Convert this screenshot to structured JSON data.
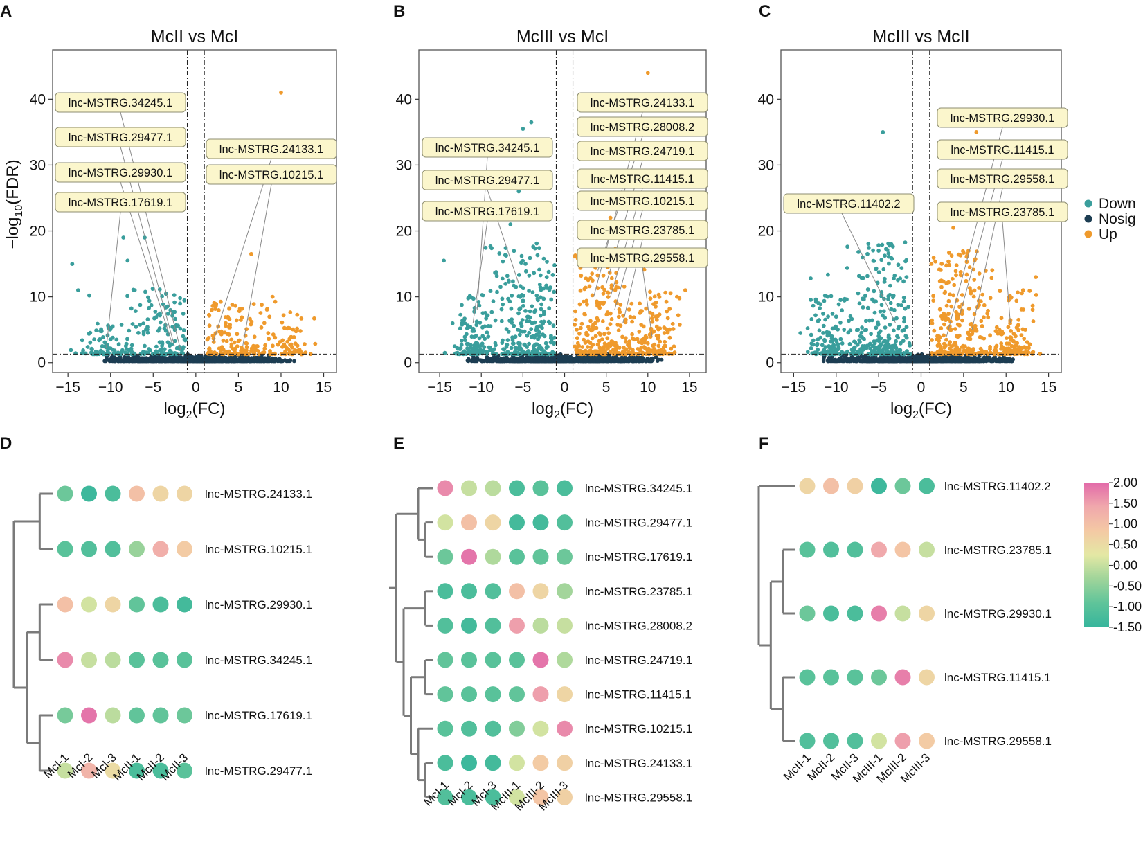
{
  "colors": {
    "down": "#3a9e9c",
    "nosig": "#1c3d52",
    "up": "#ef9a2c",
    "label_fill": "#fbf6cc",
    "label_stroke": "#8c8c70",
    "dendro": "#7a7a7a",
    "colorbar": [
      "#36b59c",
      "#5fc49a",
      "#9fd49a",
      "#e4e8a4",
      "#f4c9a4",
      "#f0a8ac",
      "#e26aa9"
    ]
  },
  "chart_data": [
    {
      "panel": "A",
      "type": "scatter",
      "title": "McII vs McI",
      "xlabel": "log2(FC)",
      "ylabel": "-log10(FDR)",
      "xlim": [
        -16.8,
        16.5
      ],
      "ylim": [
        -1.5,
        47.5
      ],
      "xticks": [
        "-15",
        "-10",
        "-5",
        "0",
        "5",
        "10",
        "15"
      ],
      "yticks": [
        "0",
        "10",
        "20",
        "30",
        "40"
      ],
      "fc_threshold": 1,
      "fdr_threshold": 1.3,
      "top_up": [
        [
          10,
          41
        ],
        [
          6.5,
          16.5
        ],
        [
          10.2,
          27.5
        ],
        [
          9,
          10
        ]
      ],
      "top_down": [
        [
          -14.5,
          15
        ],
        [
          -13.8,
          11
        ],
        [
          -12.5,
          10.2
        ],
        [
          -8.5,
          19
        ],
        [
          -6,
          19
        ],
        [
          -8,
          15.5
        ]
      ],
      "labels": [
        {
          "text": "lnc-MSTRG.34245.1",
          "x": -1.8,
          "y": 2
        },
        {
          "text": "lnc-MSTRG.29477.1",
          "x": -2.5,
          "y": 2.5
        },
        {
          "text": "lnc-MSTRG.29930.1",
          "x": -2.8,
          "y": 3
        },
        {
          "text": "lnc-MSTRG.17619.1",
          "x": -10.5,
          "y": 2.2
        },
        {
          "text": "lnc-MSTRG.24133.1",
          "x": 2,
          "y": 3
        },
        {
          "text": "lnc-MSTRG.10215.1",
          "x": 5.5,
          "y": 2.5
        }
      ]
    },
    {
      "panel": "B",
      "type": "scatter",
      "title": "McIII vs McI",
      "xlabel": "log2(FC)",
      "ylabel": "",
      "xlim": [
        -17.5,
        17
      ],
      "ylim": [
        -1.5,
        47.5
      ],
      "xticks": [
        "-15",
        "-10",
        "-5",
        "0",
        "5",
        "10",
        "15"
      ],
      "yticks": [
        "0",
        "10",
        "20",
        "30",
        "40"
      ],
      "fc_threshold": 1,
      "fdr_threshold": 1.3,
      "top_up": [
        [
          10,
          44
        ],
        [
          5.5,
          22
        ],
        [
          14.5,
          11
        ],
        [
          13.5,
          10
        ]
      ],
      "top_down": [
        [
          -4,
          36.5
        ],
        [
          -5,
          35.5
        ],
        [
          -5.5,
          26
        ],
        [
          -6.5,
          21
        ],
        [
          -14.5,
          15.5
        ],
        [
          -4.5,
          22
        ]
      ],
      "labels": [
        {
          "text": "lnc-MSTRG.34245.1",
          "x": -10.5,
          "y": 8
        },
        {
          "text": "lnc-MSTRG.29477.1",
          "x": -5.5,
          "y": 12
        },
        {
          "text": "lnc-MSTRG.17619.1",
          "x": -11,
          "y": 6
        },
        {
          "text": "lnc-MSTRG.24133.1",
          "x": 3.5,
          "y": 10
        },
        {
          "text": "lnc-MSTRG.28008.2",
          "x": 4,
          "y": 14
        },
        {
          "text": "lnc-MSTRG.24719.1",
          "x": 5,
          "y": 12
        },
        {
          "text": "lnc-MSTRG.11415.1",
          "x": 5.5,
          "y": 10
        },
        {
          "text": "lnc-MSTRG.10215.1",
          "x": 6,
          "y": 8
        },
        {
          "text": "lnc-MSTRG.23785.1",
          "x": 7,
          "y": 6
        },
        {
          "text": "lnc-MSTRG.29558.1",
          "x": 10.5,
          "y": 4
        }
      ]
    },
    {
      "panel": "C",
      "type": "scatter",
      "title": "McIII vs McII",
      "xlabel": "log2(FC)",
      "ylabel": "",
      "xlim": [
        -16.5,
        16.5
      ],
      "ylim": [
        -1.5,
        47.5
      ],
      "xticks": [
        "-15",
        "-10",
        "-5",
        "0",
        "5",
        "10",
        "15"
      ],
      "yticks": [
        "0",
        "10",
        "20",
        "30",
        "40"
      ],
      "fc_threshold": 1,
      "fdr_threshold": 1.3,
      "top_up": [
        [
          6.5,
          35
        ],
        [
          3.8,
          20.5
        ],
        [
          13.5,
          13
        ],
        [
          12,
          11
        ]
      ],
      "top_down": [
        [
          -4.5,
          35
        ],
        [
          -3.5,
          18
        ],
        [
          -5,
          17
        ],
        [
          -13,
          12.8
        ],
        [
          -11,
          10
        ]
      ],
      "labels": [
        {
          "text": "lnc-MSTRG.11402.2",
          "x": -3,
          "y": 6
        },
        {
          "text": "lnc-MSTRG.29930.1",
          "x": 3,
          "y": 4
        },
        {
          "text": "lnc-MSTRG.11415.1",
          "x": 4.5,
          "y": 7
        },
        {
          "text": "lnc-MSTRG.29558.1",
          "x": 6,
          "y": 5
        },
        {
          "text": "lnc-MSTRG.23785.1",
          "x": 10.5,
          "y": 6
        }
      ]
    },
    {
      "panel": "D",
      "type": "heatmap",
      "columns": [
        "McI-1",
        "McI-2",
        "McI-3",
        "McII-1",
        "McII-2",
        "McII-3"
      ],
      "rows": [
        "lnc-MSTRG.24133.1",
        "lnc-MSTRG.10215.1",
        "lnc-MSTRG.29930.1",
        "lnc-MSTRG.34245.1",
        "lnc-MSTRG.17619.1",
        "lnc-MSTRG.29477.1"
      ],
      "values": [
        [
          -0.8,
          -1.4,
          -1.2,
          1.0,
          0.6,
          0.6
        ],
        [
          -1.0,
          -1.1,
          -1.1,
          -0.4,
          1.3,
          0.8
        ],
        [
          1.0,
          0.1,
          0.6,
          -0.9,
          -1.2,
          -1.3
        ],
        [
          1.7,
          0.0,
          -0.1,
          -1.0,
          -1.0,
          -1.0
        ],
        [
          -0.7,
          1.9,
          -0.1,
          -0.9,
          -0.9,
          -0.8
        ],
        [
          0.0,
          1.2,
          0.5,
          -1.2,
          -1.2,
          -1.0
        ]
      ],
      "dendrogram": "((r0,r1),((r2,r3),(r4,r5)))"
    },
    {
      "panel": "E",
      "type": "heatmap",
      "columns": [
        "McI-1",
        "McI-2",
        "McI-3",
        "McIII-1",
        "McIII-2",
        "McIII-3"
      ],
      "rows": [
        "lnc-MSTRG.34245.1",
        "lnc-MSTRG.29477.1",
        "lnc-MSTRG.17619.1",
        "lnc-MSTRG.23785.1",
        "lnc-MSTRG.28008.2",
        "lnc-MSTRG.24719.1",
        "lnc-MSTRG.11415.1",
        "lnc-MSTRG.10215.1",
        "lnc-MSTRG.24133.1",
        "lnc-MSTRG.29558.1"
      ],
      "values": [
        [
          1.7,
          0.0,
          -0.1,
          -1.2,
          -1.0,
          -1.2
        ],
        [
          0.1,
          1.0,
          0.6,
          -1.3,
          -1.3,
          -1.1
        ],
        [
          -0.8,
          1.9,
          -0.2,
          -1.0,
          -0.9,
          -0.8
        ],
        [
          -1.2,
          -1.2,
          -1.1,
          1.0,
          0.6,
          -0.3
        ],
        [
          -1.1,
          -1.3,
          -1.1,
          1.5,
          -0.1,
          0.0
        ],
        [
          -0.9,
          -1.0,
          -1.0,
          -1.0,
          1.9,
          -0.2
        ],
        [
          -0.9,
          -1.0,
          -1.0,
          -0.9,
          1.5,
          0.6
        ],
        [
          -1.0,
          -1.1,
          -1.1,
          -0.6,
          0.1,
          1.7
        ],
        [
          -1.2,
          -1.4,
          -1.3,
          0.1,
          0.8,
          0.7
        ],
        [
          -1.1,
          -1.2,
          -1.2,
          0.1,
          0.9,
          0.7
        ]
      ],
      "dendrogram": "(((r0,(r1,r2)),((r3,r4),((r5,r6),(r7,(r8,r9))))))"
    },
    {
      "panel": "F",
      "type": "heatmap",
      "columns": [
        "McII-1",
        "McII-2",
        "McII-3",
        "McIII-1",
        "McIII-2",
        "McIII-3"
      ],
      "rows": [
        "lnc-MSTRG.11402.2",
        "lnc-MSTRG.23785.1",
        "lnc-MSTRG.29930.1",
        "lnc-MSTRG.11415.1",
        "lnc-MSTRG.29558.1"
      ],
      "values": [
        [
          0.6,
          1.0,
          0.7,
          -1.4,
          -0.8,
          -1.2
        ],
        [
          -1.0,
          -1.1,
          -1.1,
          1.4,
          0.9,
          0.0
        ],
        [
          -0.8,
          -1.2,
          -1.2,
          1.8,
          0.0,
          0.6
        ],
        [
          -1.0,
          -1.0,
          -1.0,
          -0.8,
          1.8,
          0.6
        ],
        [
          -1.1,
          -1.1,
          -1.1,
          0.1,
          1.5,
          0.8
        ]
      ],
      "dendrogram": "(r0,((r1,r2),(r3,r4)))"
    }
  ],
  "legend": {
    "items": [
      {
        "label": "Down",
        "color": "#3a9e9c"
      },
      {
        "label": "Nosig",
        "color": "#1c3d52"
      },
      {
        "label": "Up",
        "color": "#ef9a2c"
      }
    ]
  },
  "colorbar": {
    "min": -1.5,
    "max": 2.0,
    "ticks": [
      "2.00",
      "1.50",
      "1.00",
      "0.50",
      "0.00",
      "-0.50",
      "-1.00",
      "-1.50"
    ]
  }
}
